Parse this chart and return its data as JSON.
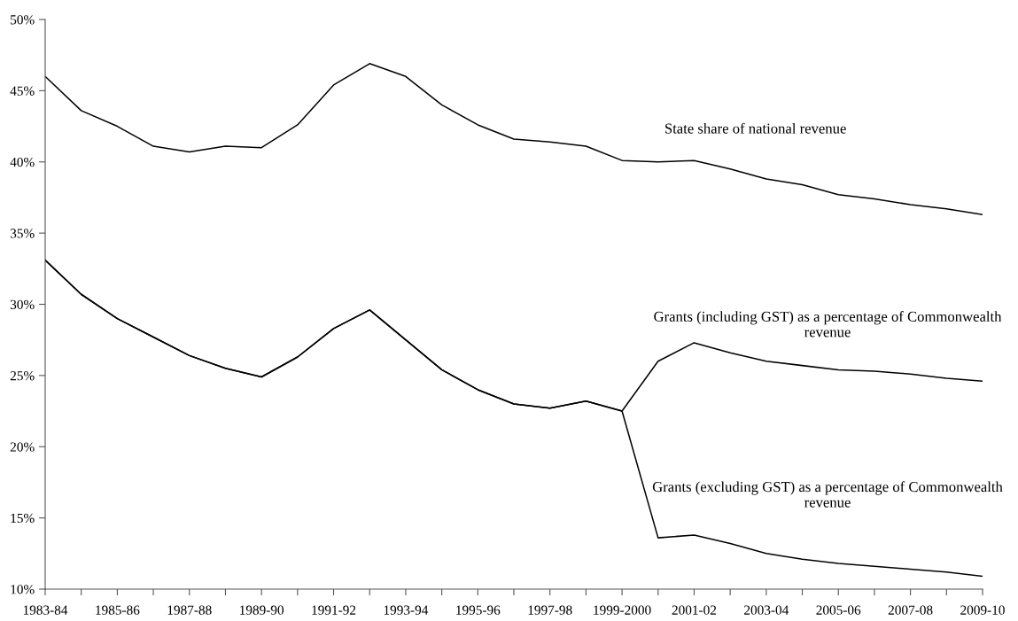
{
  "chart_data": {
    "type": "line",
    "categories": [
      "1983-84",
      null,
      "1985-86",
      null,
      "1987-88",
      null,
      "1989-90",
      null,
      "1991-92",
      null,
      "1993-94",
      null,
      "1995-96",
      null,
      "1997-98",
      null,
      "1999-2000",
      null,
      "2001-02",
      null,
      "2003-04",
      null,
      "2005-06",
      null,
      "2007-08",
      null,
      "2009-10"
    ],
    "series": [
      {
        "name": "State share of national revenue",
        "color": "#000000",
        "values": [
          46.0,
          43.6,
          42.5,
          41.1,
          40.7,
          41.1,
          41.0,
          42.6,
          45.4,
          46.9,
          46.0,
          44.0,
          42.6,
          41.6,
          41.4,
          41.1,
          40.1,
          40.0,
          40.1,
          39.5,
          38.8,
          38.4,
          37.7,
          37.4,
          37.0,
          36.7,
          36.3
        ]
      },
      {
        "name": "Grants (including GST) as a percentage of Commonwealth\nrevenue",
        "color": "#000000",
        "values": [
          33.1,
          30.7,
          29.0,
          27.7,
          26.4,
          25.5,
          24.9,
          26.3,
          28.3,
          29.6,
          27.5,
          25.4,
          24.0,
          23.0,
          22.7,
          23.2,
          22.5,
          26.0,
          27.3,
          26.6,
          26.0,
          25.7,
          25.4,
          25.3,
          25.1,
          24.8,
          24.6
        ]
      },
      {
        "name": "Grants (excluding GST) as a percentage of Commonwealth\nrevenue",
        "color": "#000000",
        "values": [
          33.1,
          30.7,
          29.0,
          27.7,
          26.4,
          25.5,
          24.9,
          26.3,
          28.3,
          29.6,
          27.5,
          25.4,
          24.0,
          23.0,
          22.7,
          23.2,
          22.5,
          13.6,
          13.8,
          13.2,
          12.5,
          12.1,
          11.8,
          11.6,
          11.4,
          11.2,
          10.9
        ]
      }
    ],
    "ylim": [
      10,
      50
    ],
    "yticks": [
      {
        "value": 10,
        "label": "10%"
      },
      {
        "value": 15,
        "label": "15%"
      },
      {
        "value": 20,
        "label": "20%"
      },
      {
        "value": 25,
        "label": "25%"
      },
      {
        "value": 30,
        "label": "30%"
      },
      {
        "value": 35,
        "label": "35%"
      },
      {
        "value": 40,
        "label": "40%"
      },
      {
        "value": 45,
        "label": "45%"
      },
      {
        "value": 50,
        "label": "50%"
      }
    ],
    "grid": false,
    "marker": "none",
    "line_style": "solid"
  }
}
